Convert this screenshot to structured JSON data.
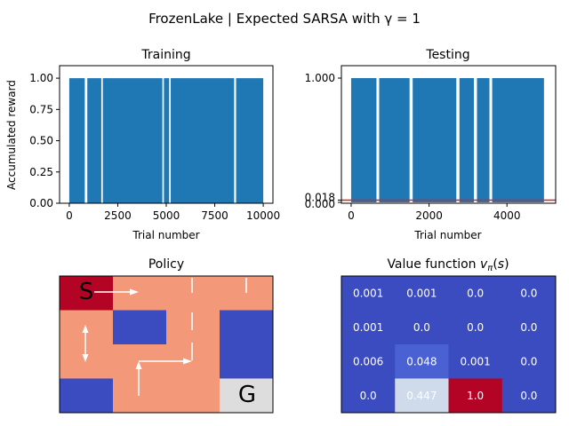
{
  "figure": {
    "suptitle": "FrozenLake | Expected SARSA with γ = 1"
  },
  "chart_data": [
    {
      "id": "training",
      "type": "bar",
      "title": "Training",
      "xlabel": "Trial number",
      "ylabel": "Accumulated reward",
      "xlim": [
        -500,
        10500
      ],
      "ylim": [
        0,
        1.1
      ],
      "xticks": [
        0,
        2500,
        5000,
        7500,
        10000
      ],
      "yticks": [
        0.0,
        0.25,
        0.5,
        0.75,
        1.0
      ],
      "xtick_labels": [
        "0",
        "2500",
        "5000",
        "7500",
        "10000"
      ],
      "ytick_labels": [
        "0.00",
        "0.25",
        "0.50",
        "0.75",
        "1.00"
      ],
      "bar_color": "#1f77b4",
      "value_when_success": 1.0,
      "success_intervals": [
        [
          0,
          800
        ],
        [
          930,
          1650
        ],
        [
          1730,
          4800
        ],
        [
          4880,
          5150
        ],
        [
          5230,
          8500
        ],
        [
          8600,
          10000
        ]
      ]
    },
    {
      "id": "testing",
      "type": "bar",
      "title": "Testing",
      "xlabel": "Trial number",
      "ylabel": "",
      "xlim": [
        -250,
        5250
      ],
      "ylim": [
        0,
        1.0
      ],
      "xticks": [
        0,
        2000,
        4000
      ],
      "yticks": [
        0.0,
        0.018,
        1.0
      ],
      "xtick_labels": [
        "0",
        "2000",
        "4000"
      ],
      "ytick_labels": [
        "0.000",
        "0.018",
        "1.000"
      ],
      "bar_color": "#1f77b4",
      "mean_line_value": 0.018,
      "mean_line_color": "#d62728",
      "value_when_success": 1.0,
      "success_intervals": [
        [
          0,
          650
        ],
        [
          720,
          1500
        ],
        [
          1580,
          2700
        ],
        [
          2780,
          3150
        ],
        [
          3230,
          3550
        ],
        [
          3620,
          4950
        ]
      ]
    },
    {
      "id": "policy",
      "type": "heatmap",
      "title": "Policy",
      "rows": 4,
      "cols": 4,
      "cell_colors": [
        [
          "#b40426",
          "#f4987a",
          "#f4987a",
          "#f4987a"
        ],
        [
          "#f4987a",
          "#3b4cc0",
          "#f4987a",
          "#3b4cc0"
        ],
        [
          "#f4987a",
          "#f4987a",
          "#f4987a",
          "#3b4cc0"
        ],
        [
          "#3b4cc0",
          "#f4987a",
          "#f4987a",
          "#dddddd"
        ]
      ],
      "start_label": "S",
      "goal_label": "G",
      "start_cell": [
        0,
        0
      ],
      "goal_cell": [
        3,
        3
      ],
      "arrow_color": "#ffffff"
    },
    {
      "id": "value",
      "type": "heatmap",
      "title": "Value function vπ(s)",
      "rows": 4,
      "cols": 4,
      "values": [
        [
          "0.001",
          "0.001",
          "0.0",
          "0.0"
        ],
        [
          "0.001",
          "0.0",
          "0.0",
          "0.0"
        ],
        [
          "0.006",
          "0.048",
          "0.001",
          "0.0"
        ],
        [
          "0.0",
          "0.447",
          "1.0",
          "0.0"
        ]
      ],
      "cell_colors": [
        [
          "#3b4cc0",
          "#3b4cc0",
          "#3b4cc0",
          "#3b4cc0"
        ],
        [
          "#3b4cc0",
          "#3b4cc0",
          "#3b4cc0",
          "#3b4cc0"
        ],
        [
          "#3b4cc0",
          "#4961d2",
          "#3b4cc0",
          "#3b4cc0"
        ],
        [
          "#3b4cc0",
          "#cfdaea",
          "#b40426",
          "#3b4cc0"
        ]
      ]
    }
  ]
}
